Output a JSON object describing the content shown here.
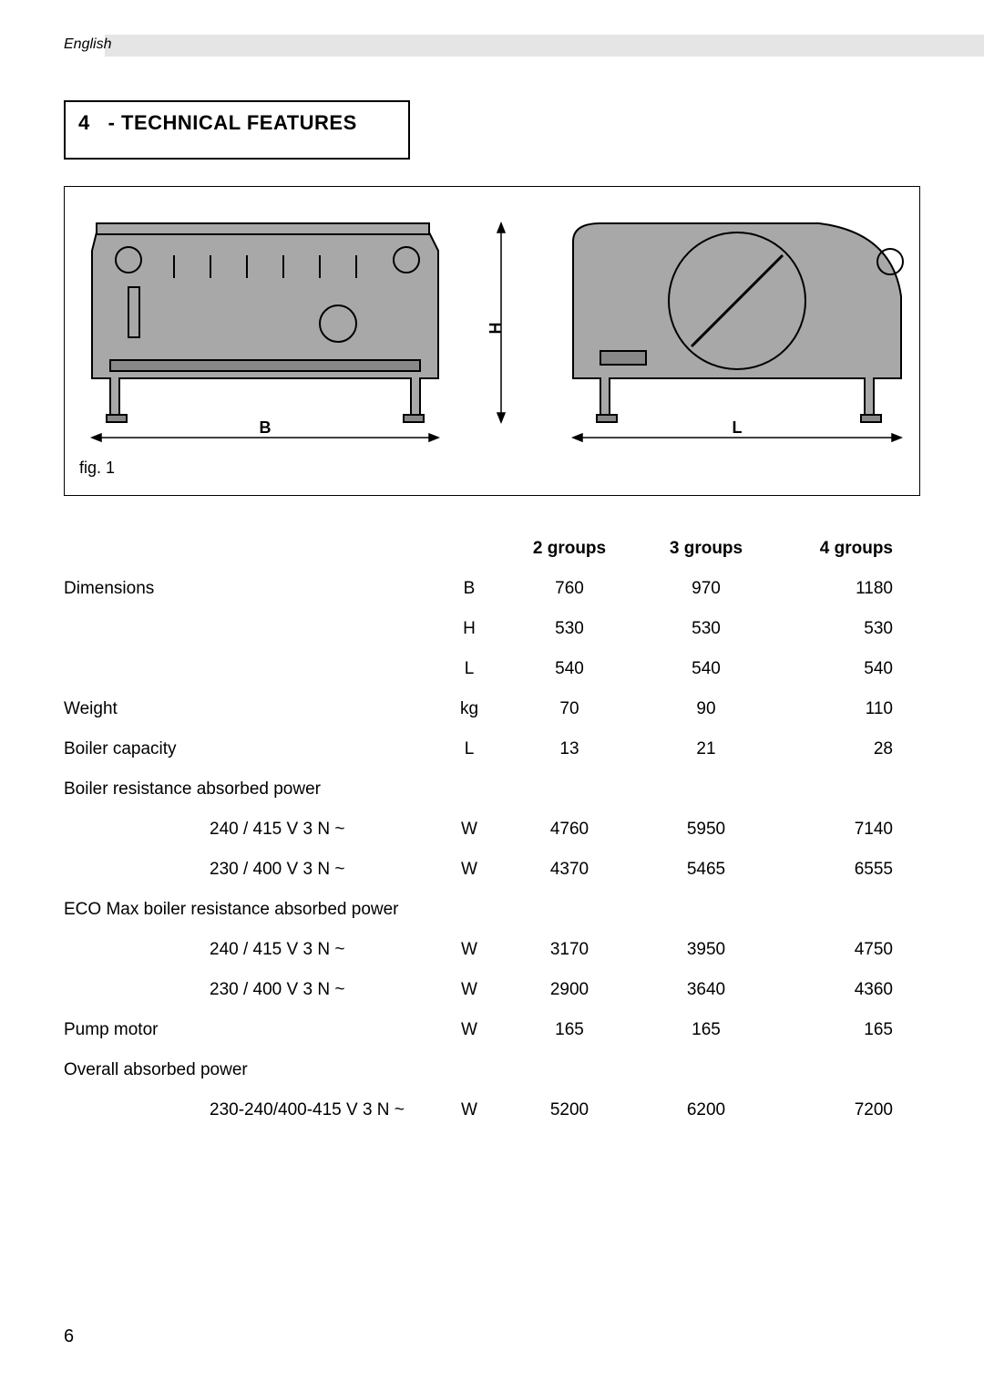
{
  "language": "English",
  "section_number": "4",
  "section_title": "- TECHNICAL FEATURES",
  "figure_caption": "fig. 1",
  "dim_labels": {
    "B": "B",
    "H": "H",
    "L": "L"
  },
  "table": {
    "headers": [
      "2 groups",
      "3 groups",
      "4 groups"
    ],
    "rows": [
      {
        "label": "Dimensions",
        "sub": "",
        "unit": "B",
        "v": [
          "760",
          "970",
          "1180"
        ]
      },
      {
        "label": "",
        "sub": "",
        "unit": "H",
        "v": [
          "530",
          "530",
          "530"
        ]
      },
      {
        "label": "",
        "sub": "",
        "unit": "L",
        "v": [
          "540",
          "540",
          "540"
        ]
      },
      {
        "label": "Weight",
        "sub": "",
        "unit": "kg",
        "v": [
          "70",
          "90",
          "110"
        ]
      },
      {
        "label": "Boiler capacity",
        "sub": "",
        "unit": "L",
        "v": [
          "13",
          "21",
          "28"
        ]
      },
      {
        "label": "Boiler resistance absorbed power",
        "sub": "",
        "unit": "",
        "v": [
          "",
          "",
          ""
        ]
      },
      {
        "label": "",
        "sub": "240 / 415 V 3 N ~",
        "unit": "W",
        "v": [
          "4760",
          "5950",
          "7140"
        ]
      },
      {
        "label": "",
        "sub": "230 / 400 V 3 N ~",
        "unit": "W",
        "v": [
          "4370",
          "5465",
          "6555"
        ]
      },
      {
        "label": "ECO Max boiler resistance absorbed power",
        "sub": "",
        "unit": "",
        "v": [
          "",
          "",
          ""
        ]
      },
      {
        "label": "",
        "sub": "240 / 415 V 3 N ~",
        "unit": "W",
        "v": [
          "3170",
          "3950",
          "4750"
        ]
      },
      {
        "label": "",
        "sub": "230 / 400 V 3 N ~",
        "unit": "W",
        "v": [
          "2900",
          "3640",
          "4360"
        ]
      },
      {
        "label": "Pump motor",
        "sub": "",
        "unit": "W",
        "v": [
          "165",
          "165",
          "165"
        ]
      },
      {
        "label": "Overall absorbed power",
        "sub": "",
        "unit": "",
        "v": [
          "",
          "",
          ""
        ]
      },
      {
        "label": "",
        "sub": "230-240/400-415 V 3 N ~",
        "unit": "W",
        "v": [
          "5200",
          "6200",
          "7200"
        ]
      }
    ]
  },
  "page_number": "6",
  "colors": {
    "machine_fill": "#a8a8a8",
    "machine_stroke": "#000000",
    "header_bar": "#e5e5e5"
  }
}
